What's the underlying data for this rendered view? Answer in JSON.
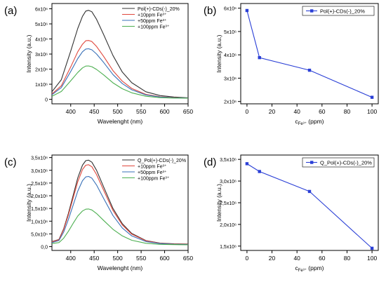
{
  "panels": [
    {
      "type": "line",
      "panel_label": "(a)",
      "xlabel": "Wavelenght (nm)",
      "ylabel": "Intensity (a.u.)",
      "xlim": [
        360,
        650
      ],
      "ylim": [
        -300000,
        6350000
      ],
      "xticks": [
        400,
        450,
        500,
        550,
        600,
        650
      ],
      "xtick_labels": [
        "400",
        "450",
        "500",
        "550",
        "600",
        "650"
      ],
      "yticks": [
        0,
        1000000,
        2000000,
        3000000,
        4000000,
        5000000,
        6000000
      ],
      "ytick_labels": [
        "0",
        "1x10⁶",
        "2x10⁶",
        "3x10⁶",
        "4x10⁶",
        "5x10⁶",
        "6x10⁶"
      ],
      "legend_position": "top-right",
      "series": [
        {
          "name": "Pol(+)-CDs(-)_20%",
          "color": "#333333",
          "x": [
            360,
            380,
            400,
            415,
            425,
            432,
            438,
            445,
            455,
            470,
            490,
            510,
            530,
            560,
            590,
            620,
            650
          ],
          "y": [
            500000,
            1300000,
            3200000,
            4700000,
            5500000,
            5850000,
            5900000,
            5800000,
            5300000,
            4300000,
            2900000,
            1800000,
            1100000,
            500000,
            250000,
            150000,
            100000
          ]
        },
        {
          "name": "+10ppm Fe³⁺",
          "color": "#e0473c",
          "x": [
            360,
            380,
            400,
            415,
            425,
            432,
            438,
            445,
            455,
            470,
            490,
            510,
            530,
            560,
            590,
            620,
            650
          ],
          "y": [
            350000,
            900000,
            2150000,
            3150000,
            3650000,
            3880000,
            3900000,
            3830000,
            3500000,
            2850000,
            1900000,
            1200000,
            720000,
            330000,
            170000,
            110000,
            80000
          ]
        },
        {
          "name": "+50ppm Fe³⁺",
          "color": "#3a71b8",
          "x": [
            360,
            380,
            400,
            415,
            425,
            432,
            438,
            445,
            455,
            470,
            490,
            510,
            530,
            560,
            590,
            620,
            650
          ],
          "y": [
            300000,
            780000,
            1850000,
            2700000,
            3150000,
            3330000,
            3350000,
            3280000,
            3000000,
            2450000,
            1640000,
            1040000,
            630000,
            290000,
            150000,
            100000,
            80000
          ]
        },
        {
          "name": "+100ppm Fe³⁺",
          "color": "#4caf50",
          "x": [
            360,
            380,
            400,
            415,
            425,
            432,
            438,
            445,
            455,
            470,
            490,
            510,
            530,
            560,
            590,
            620,
            650
          ],
          "y": [
            200000,
            520000,
            1230000,
            1780000,
            2080000,
            2200000,
            2210000,
            2160000,
            1980000,
            1620000,
            1090000,
            700000,
            430000,
            200000,
            110000,
            80000,
            70000
          ]
        }
      ]
    },
    {
      "type": "line",
      "panel_label": "(b)",
      "xlabel": "c",
      "xlabel_sub": "Fe³⁺",
      "xlabel_suffix": " (ppm)",
      "ylabel": "Intensity (a.u.)",
      "xlim": [
        -5,
        105
      ],
      "ylim": [
        1900000,
        6200000
      ],
      "xticks": [
        0,
        20,
        40,
        60,
        80,
        100
      ],
      "xtick_labels": [
        "0",
        "20",
        "40",
        "60",
        "80",
        "100"
      ],
      "yticks": [
        2000000,
        3000000,
        4000000,
        5000000,
        6000000
      ],
      "ytick_labels": [
        "2x10⁶",
        "3x10⁶",
        "4x10⁶",
        "5x10⁶",
        "6x10⁶"
      ],
      "legend_position": "top-right",
      "markers": true,
      "series": [
        {
          "name": "Pol(+)-CDs(-)_20%",
          "color": "#2a3fd6",
          "x": [
            0,
            10,
            50,
            100
          ],
          "y": [
            5900000,
            3880000,
            3340000,
            2180000
          ]
        }
      ]
    },
    {
      "type": "line",
      "panel_label": "(c)",
      "xlabel": "Wavelenght (nm)",
      "ylabel": "Intensity (a.u.)",
      "xlim": [
        360,
        650
      ],
      "ylim": [
        -150000,
        3600000
      ],
      "xticks": [
        400,
        450,
        500,
        550,
        600,
        650
      ],
      "xtick_labels": [
        "400",
        "450",
        "500",
        "550",
        "600",
        "650"
      ],
      "yticks": [
        0,
        500000,
        1000000,
        1500000,
        2000000,
        2500000,
        3000000,
        3500000
      ],
      "ytick_labels": [
        "0,0",
        "5,0x10⁵",
        "1,0x10⁶",
        "1,5x10⁶",
        "2,0x10⁶",
        "2,5x10⁶",
        "3,0x10⁶",
        "3,5x10⁶"
      ],
      "legend_position": "top-right",
      "series": [
        {
          "name": "Q_Pol(+)-CDs(-)_20%",
          "color": "#333333",
          "x": [
            360,
            375,
            385,
            395,
            405,
            415,
            425,
            432,
            438,
            445,
            455,
            470,
            490,
            510,
            530,
            560,
            590,
            620,
            650
          ],
          "y": [
            200000,
            280000,
            700000,
            1300000,
            2000000,
            2700000,
            3200000,
            3380000,
            3400000,
            3320000,
            3000000,
            2350000,
            1500000,
            900000,
            520000,
            240000,
            140000,
            110000,
            100000
          ]
        },
        {
          "name": "+10ppm Fe³⁺",
          "color": "#e0473c",
          "x": [
            360,
            375,
            385,
            395,
            405,
            415,
            425,
            432,
            438,
            445,
            455,
            470,
            490,
            510,
            530,
            560,
            590,
            620,
            650
          ],
          "y": [
            190000,
            270000,
            670000,
            1240000,
            1900000,
            2550000,
            3030000,
            3200000,
            3220000,
            3140000,
            2830000,
            2220000,
            1420000,
            850000,
            490000,
            230000,
            130000,
            100000,
            90000
          ]
        },
        {
          "name": "+50ppm Fe³⁺",
          "color": "#3a71b8",
          "x": [
            360,
            375,
            385,
            395,
            405,
            415,
            425,
            432,
            438,
            445,
            455,
            470,
            490,
            510,
            530,
            560,
            590,
            620,
            650
          ],
          "y": [
            160000,
            240000,
            570000,
            1060000,
            1620000,
            2180000,
            2590000,
            2740000,
            2760000,
            2690000,
            2420000,
            1900000,
            1220000,
            730000,
            420000,
            200000,
            120000,
            90000,
            80000
          ]
        },
        {
          "name": "+100ppm Fe³⁺",
          "color": "#4caf50",
          "x": [
            360,
            375,
            385,
            395,
            405,
            415,
            425,
            432,
            438,
            445,
            455,
            470,
            490,
            510,
            530,
            560,
            590,
            620,
            650
          ],
          "y": [
            120000,
            160000,
            330000,
            600000,
            910000,
            1200000,
            1400000,
            1470000,
            1480000,
            1440000,
            1300000,
            1030000,
            680000,
            420000,
            250000,
            130000,
            90000,
            80000,
            70000
          ]
        }
      ]
    },
    {
      "type": "line",
      "panel_label": "(d)",
      "xlabel": "c",
      "xlabel_sub": "Fe³⁺",
      "xlabel_suffix": " (ppm)",
      "ylabel": "Intensity (a.u.)",
      "xlim": [
        -5,
        105
      ],
      "ylim": [
        1400000,
        3600000
      ],
      "xticks": [
        0,
        20,
        40,
        60,
        80,
        100
      ],
      "xtick_labels": [
        "0",
        "20",
        "40",
        "60",
        "80",
        "100"
      ],
      "yticks": [
        1500000,
        2000000,
        2500000,
        3000000,
        3500000
      ],
      "ytick_labels": [
        "1,5x10⁶",
        "2,0x10⁶",
        "2,5x10⁶",
        "3,0x10⁶",
        "3,5x10⁶"
      ],
      "legend_position": "top-right",
      "markers": true,
      "series": [
        {
          "name": "Q_Pol(+)-CDs(-)_20%",
          "color": "#2a3fd6",
          "x": [
            0,
            10,
            50,
            100
          ],
          "y": [
            3400000,
            3220000,
            2760000,
            1450000
          ]
        }
      ]
    }
  ]
}
